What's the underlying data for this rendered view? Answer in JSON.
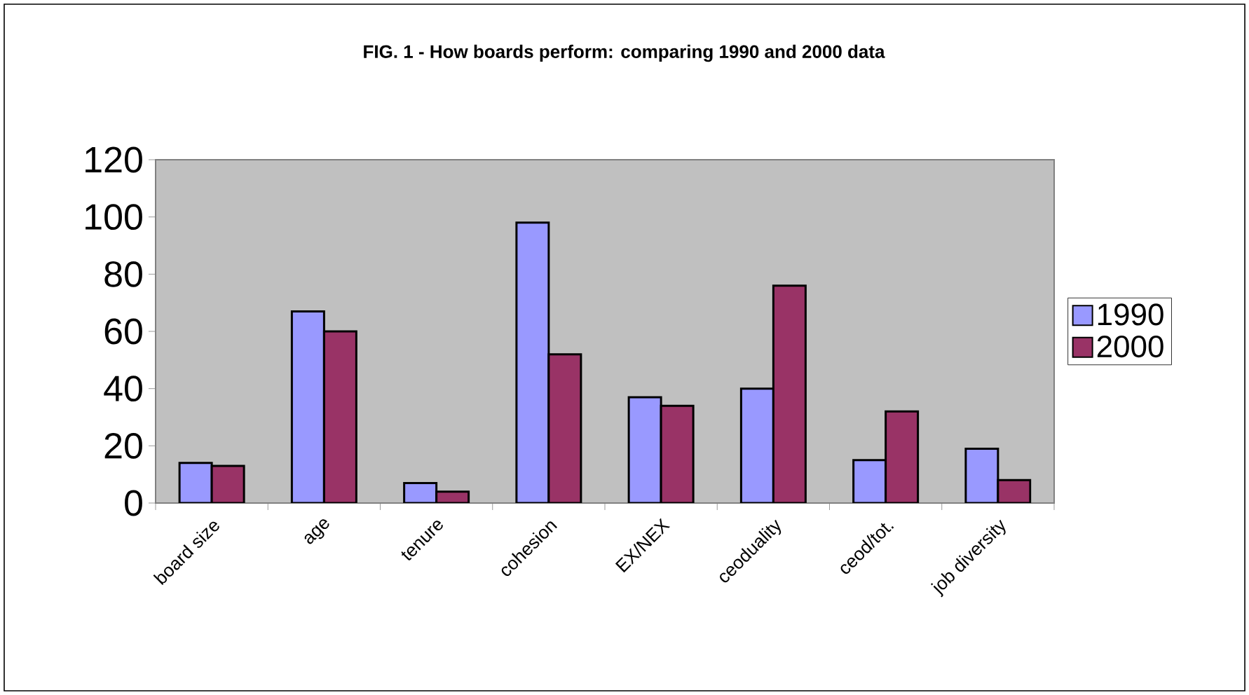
{
  "chart_data": {
    "type": "bar",
    "title": "FIG. 1 - How boards perform: comparing 1990 and 2000 data",
    "categories": [
      "board size",
      "age",
      "tenure",
      "cohesion",
      "EX/NEX",
      "ceoduality",
      "ceod/tot.",
      "job diversity"
    ],
    "series": [
      {
        "name": "1990",
        "color": "#9999ff",
        "values": [
          14,
          67,
          7,
          98,
          37,
          40,
          15,
          19
        ]
      },
      {
        "name": "2000",
        "color": "#993366",
        "values": [
          13,
          60,
          4,
          52,
          34,
          76,
          32,
          8
        ]
      }
    ],
    "ylim": [
      0,
      120
    ],
    "yticks": [
      0,
      20,
      40,
      60,
      80,
      100,
      120
    ],
    "legend": "right"
  }
}
